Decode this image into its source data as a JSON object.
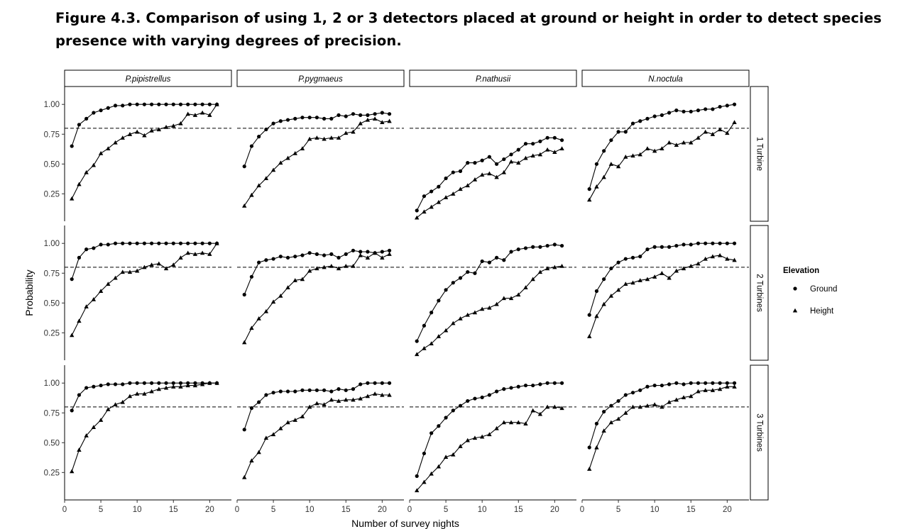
{
  "caption": "Figure 4.3.  Comparison of using 1, 2 or 3 detectors placed at ground or height in order to detect species presence with varying degrees of precision.",
  "chart_data": {
    "type": "line",
    "facets": {
      "columns": [
        "P.pipistrellus",
        "P.pygmaeus",
        "P.nathusii",
        "N.noctula"
      ],
      "rows": [
        "1 Turbine",
        "2 Turbines",
        "3 Turbines"
      ]
    },
    "xlabel": "Number of survey nights",
    "ylabel": "Probability",
    "xlim": [
      0,
      23
    ],
    "ylim": [
      0.02,
      1.15
    ],
    "x_ticks": [
      "0",
      "5",
      "10",
      "15",
      "20"
    ],
    "y_ticks": [
      "0.25",
      "0.50",
      "0.75",
      "1.00"
    ],
    "reference_line": 0.8,
    "legend": {
      "title": "Elevation",
      "placement": "right",
      "entries": [
        {
          "label": "Ground",
          "marker": "circle"
        },
        {
          "label": "Height",
          "marker": "triangle"
        }
      ]
    },
    "x": [
      1,
      2,
      3,
      4,
      5,
      6,
      7,
      8,
      9,
      10,
      11,
      12,
      13,
      14,
      15,
      16,
      17,
      18,
      19,
      20,
      21
    ],
    "panels": [
      {
        "row": "1 Turbine",
        "col": "P.pipistrellus",
        "ground": [
          0.65,
          0.83,
          0.88,
          0.93,
          0.95,
          0.97,
          0.99,
          0.99,
          1.0,
          1.0,
          1.0,
          1.0,
          1.0,
          1.0,
          1.0,
          1.0,
          1.0,
          1.0,
          1.0,
          1.0,
          1.0
        ],
        "height": [
          0.21,
          0.33,
          0.43,
          0.49,
          0.59,
          0.63,
          0.68,
          0.72,
          0.75,
          0.77,
          0.74,
          0.78,
          0.79,
          0.81,
          0.82,
          0.84,
          0.92,
          0.91,
          0.93,
          0.91,
          1.0
        ]
      },
      {
        "row": "1 Turbine",
        "col": "P.pygmaeus",
        "ground": [
          0.48,
          0.65,
          0.73,
          0.79,
          0.84,
          0.86,
          0.87,
          0.88,
          0.89,
          0.89,
          0.89,
          0.88,
          0.88,
          0.91,
          0.9,
          0.92,
          0.91,
          0.91,
          0.92,
          0.93,
          0.92
        ],
        "height": [
          0.15,
          0.24,
          0.32,
          0.38,
          0.45,
          0.51,
          0.55,
          0.59,
          0.63,
          0.71,
          0.72,
          0.71,
          0.72,
          0.72,
          0.76,
          0.77,
          0.84,
          0.87,
          0.88,
          0.85,
          0.86
        ]
      },
      {
        "row": "1 Turbine",
        "col": "P.nathusii",
        "ground": [
          0.11,
          0.23,
          0.27,
          0.31,
          0.38,
          0.43,
          0.44,
          0.51,
          0.51,
          0.53,
          0.56,
          0.5,
          0.54,
          0.58,
          0.62,
          0.67,
          0.67,
          0.69,
          0.72,
          0.72,
          0.7
        ],
        "height": [
          0.05,
          0.1,
          0.14,
          0.18,
          0.22,
          0.25,
          0.29,
          0.32,
          0.37,
          0.41,
          0.42,
          0.39,
          0.43,
          0.52,
          0.51,
          0.55,
          0.57,
          0.58,
          0.62,
          0.6,
          0.63
        ]
      },
      {
        "row": "1 Turbine",
        "col": "N.noctula",
        "ground": [
          0.29,
          0.5,
          0.61,
          0.7,
          0.77,
          0.77,
          0.84,
          0.86,
          0.88,
          0.9,
          0.91,
          0.93,
          0.95,
          0.94,
          0.94,
          0.95,
          0.96,
          0.96,
          0.98,
          0.99,
          1.0
        ],
        "height": [
          0.2,
          0.31,
          0.39,
          0.5,
          0.48,
          0.56,
          0.57,
          0.58,
          0.63,
          0.61,
          0.63,
          0.68,
          0.66,
          0.68,
          0.68,
          0.72,
          0.77,
          0.75,
          0.79,
          0.76,
          0.85
        ]
      },
      {
        "row": "2 Turbines",
        "col": "P.pipistrellus",
        "ground": [
          0.7,
          0.88,
          0.95,
          0.96,
          0.99,
          0.99,
          1.0,
          1.0,
          1.0,
          1.0,
          1.0,
          1.0,
          1.0,
          1.0,
          1.0,
          1.0,
          1.0,
          1.0,
          1.0,
          1.0,
          1.0
        ],
        "height": [
          0.23,
          0.35,
          0.47,
          0.53,
          0.6,
          0.66,
          0.71,
          0.76,
          0.76,
          0.77,
          0.8,
          0.82,
          0.83,
          0.79,
          0.82,
          0.88,
          0.92,
          0.91,
          0.92,
          0.91,
          1.0
        ]
      },
      {
        "row": "2 Turbines",
        "col": "P.pygmaeus",
        "ground": [
          0.57,
          0.72,
          0.84,
          0.86,
          0.87,
          0.89,
          0.88,
          0.89,
          0.9,
          0.92,
          0.91,
          0.9,
          0.91,
          0.88,
          0.91,
          0.94,
          0.93,
          0.93,
          0.92,
          0.93,
          0.94
        ],
        "height": [
          0.17,
          0.29,
          0.37,
          0.43,
          0.51,
          0.56,
          0.63,
          0.69,
          0.7,
          0.77,
          0.79,
          0.8,
          0.81,
          0.79,
          0.81,
          0.81,
          0.9,
          0.88,
          0.92,
          0.88,
          0.91
        ]
      },
      {
        "row": "2 Turbines",
        "col": "P.nathusii",
        "ground": [
          0.18,
          0.31,
          0.42,
          0.52,
          0.61,
          0.67,
          0.71,
          0.76,
          0.75,
          0.85,
          0.84,
          0.88,
          0.86,
          0.93,
          0.95,
          0.96,
          0.97,
          0.97,
          0.98,
          0.99,
          0.98
        ],
        "height": [
          0.07,
          0.12,
          0.16,
          0.22,
          0.27,
          0.33,
          0.37,
          0.4,
          0.42,
          0.45,
          0.46,
          0.49,
          0.54,
          0.54,
          0.57,
          0.63,
          0.7,
          0.76,
          0.79,
          0.8,
          0.81
        ]
      },
      {
        "row": "2 Turbines",
        "col": "N.noctula",
        "ground": [
          0.4,
          0.6,
          0.7,
          0.79,
          0.84,
          0.87,
          0.88,
          0.89,
          0.95,
          0.97,
          0.97,
          0.97,
          0.98,
          0.99,
          0.99,
          1.0,
          1.0,
          1.0,
          1.0,
          1.0,
          1.0
        ],
        "height": [
          0.22,
          0.39,
          0.49,
          0.56,
          0.61,
          0.66,
          0.67,
          0.69,
          0.7,
          0.72,
          0.75,
          0.71,
          0.77,
          0.79,
          0.81,
          0.83,
          0.87,
          0.89,
          0.9,
          0.87,
          0.86
        ]
      },
      {
        "row": "3 Turbines",
        "col": "P.pipistrellus",
        "ground": [
          0.77,
          0.9,
          0.96,
          0.97,
          0.98,
          0.99,
          0.99,
          0.99,
          1.0,
          1.0,
          1.0,
          1.0,
          1.0,
          1.0,
          1.0,
          1.0,
          1.0,
          1.0,
          1.0,
          1.0,
          1.0
        ],
        "height": [
          0.26,
          0.44,
          0.56,
          0.63,
          0.69,
          0.78,
          0.82,
          0.84,
          0.89,
          0.91,
          0.91,
          0.93,
          0.95,
          0.96,
          0.97,
          0.97,
          0.98,
          0.98,
          0.99,
          1.0,
          1.0
        ]
      },
      {
        "row": "3 Turbines",
        "col": "P.pygmaeus",
        "ground": [
          0.61,
          0.79,
          0.84,
          0.9,
          0.92,
          0.93,
          0.93,
          0.93,
          0.94,
          0.94,
          0.94,
          0.94,
          0.93,
          0.95,
          0.94,
          0.95,
          0.99,
          1.0,
          1.0,
          1.0,
          1.0
        ],
        "height": [
          0.21,
          0.35,
          0.42,
          0.54,
          0.57,
          0.62,
          0.67,
          0.69,
          0.72,
          0.8,
          0.83,
          0.82,
          0.86,
          0.85,
          0.86,
          0.86,
          0.87,
          0.89,
          0.91,
          0.9,
          0.9
        ]
      },
      {
        "row": "3 Turbines",
        "col": "P.nathusii",
        "ground": [
          0.22,
          0.41,
          0.58,
          0.64,
          0.71,
          0.77,
          0.81,
          0.85,
          0.87,
          0.88,
          0.9,
          0.93,
          0.95,
          0.96,
          0.97,
          0.98,
          0.98,
          0.99,
          1.0,
          1.0,
          1.0
        ],
        "height": [
          0.1,
          0.17,
          0.24,
          0.3,
          0.38,
          0.4,
          0.47,
          0.52,
          0.54,
          0.55,
          0.57,
          0.62,
          0.67,
          0.67,
          0.67,
          0.66,
          0.77,
          0.74,
          0.8,
          0.8,
          0.79
        ]
      },
      {
        "row": "3 Turbines",
        "col": "N.noctula",
        "ground": [
          0.46,
          0.66,
          0.76,
          0.81,
          0.85,
          0.9,
          0.92,
          0.94,
          0.97,
          0.98,
          0.98,
          0.99,
          1.0,
          0.99,
          1.0,
          1.0,
          1.0,
          1.0,
          1.0,
          1.0,
          1.0
        ],
        "height": [
          0.28,
          0.46,
          0.6,
          0.67,
          0.7,
          0.75,
          0.8,
          0.8,
          0.81,
          0.82,
          0.8,
          0.84,
          0.86,
          0.88,
          0.89,
          0.93,
          0.94,
          0.94,
          0.95,
          0.97,
          0.97
        ]
      }
    ]
  }
}
